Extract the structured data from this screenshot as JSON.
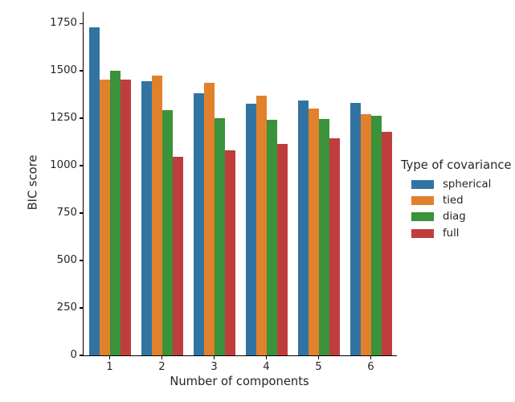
{
  "chart_data": {
    "type": "bar",
    "title": "",
    "xlabel": "Number of components",
    "ylabel": "BIC score",
    "legend_title": "Type of covariance",
    "legend_position": "center-right",
    "grid": false,
    "background_color": "#ffffff",
    "text_color": "#262626",
    "axis_color": "#000000",
    "categories": [
      "1",
      "2",
      "3",
      "4",
      "5",
      "6"
    ],
    "series": [
      {
        "name": "spherical",
        "color": "#3274a1",
        "values": [
          1730,
          1445,
          1380,
          1325,
          1345,
          1330
        ]
      },
      {
        "name": "tied",
        "color": "#e1812c",
        "values": [
          1455,
          1475,
          1435,
          1370,
          1300,
          1270
        ]
      },
      {
        "name": "diag",
        "color": "#3a923a",
        "values": [
          1500,
          1295,
          1250,
          1240,
          1245,
          1265
        ]
      },
      {
        "name": "full",
        "color": "#c03d3e",
        "values": [
          1455,
          1045,
          1080,
          1115,
          1145,
          1180
        ]
      }
    ],
    "ylim": [
      0,
      1810
    ],
    "yticks": [
      0,
      250,
      500,
      750,
      1000,
      1250,
      1500,
      1750
    ]
  }
}
